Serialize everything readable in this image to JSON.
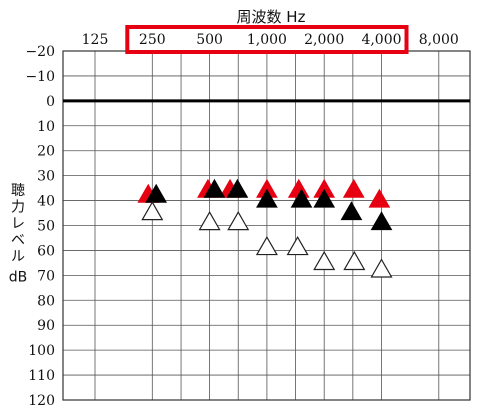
{
  "chart_data": {
    "type": "scatter",
    "title": "周波数 Hz",
    "xlabel": "周波数 Hz",
    "ylabel_chars": [
      "聴",
      "力",
      "レ",
      "ベ",
      "ル"
    ],
    "ylabel_unit": "dB",
    "x_scale": "log2",
    "x_ticks": [
      125,
      250,
      500,
      1000,
      2000,
      4000,
      8000
    ],
    "x_tick_labels": [
      "125",
      "250",
      "500",
      "1,000",
      "2,000",
      "4,000",
      "8,000"
    ],
    "x_extra_grid": [
      354,
      707,
      1414,
      2828
    ],
    "ylim": [
      -20,
      120
    ],
    "y_inverted": true,
    "y_ticks": [
      -20,
      -10,
      0,
      10,
      20,
      30,
      40,
      50,
      60,
      70,
      80,
      90,
      100,
      110,
      120
    ],
    "y_tick_labels": [
      "−20",
      "−10",
      "0",
      "10",
      "20",
      "30",
      "40",
      "50",
      "60",
      "70",
      "80",
      "90",
      "100",
      "110",
      "120"
    ],
    "grid": true,
    "reference_line": 0,
    "highlight_box": {
      "from": 250,
      "to": 4000,
      "color": "#e60012"
    },
    "series": [
      {
        "marker": "filled-triangle",
        "color": "#e60012",
        "points": [
          {
            "x": 238,
            "y": 38
          },
          {
            "x": 490,
            "y": 36
          },
          {
            "x": 640,
            "y": 36
          },
          {
            "x": 1000,
            "y": 36
          },
          {
            "x": 1470,
            "y": 36
          },
          {
            "x": 2000,
            "y": 36
          },
          {
            "x": 2860,
            "y": 36
          },
          {
            "x": 3900,
            "y": 40
          }
        ]
      },
      {
        "marker": "filled-triangle",
        "color": "#000000",
        "points": [
          {
            "x": 262,
            "y": 38
          },
          {
            "x": 530,
            "y": 36
          },
          {
            "x": 700,
            "y": 36
          },
          {
            "x": 1000,
            "y": 40
          },
          {
            "x": 1520,
            "y": 40
          },
          {
            "x": 2000,
            "y": 40
          },
          {
            "x": 2780,
            "y": 45
          },
          {
            "x": 4000,
            "y": 49
          }
        ]
      },
      {
        "marker": "hollow-triangle",
        "color": "#000000",
        "points": [
          {
            "x": 250,
            "y": 45
          },
          {
            "x": 500,
            "y": 49
          },
          {
            "x": 707,
            "y": 49
          },
          {
            "x": 1000,
            "y": 59
          },
          {
            "x": 1450,
            "y": 59
          },
          {
            "x": 2000,
            "y": 65
          },
          {
            "x": 2880,
            "y": 65
          },
          {
            "x": 4000,
            "y": 68
          }
        ]
      }
    ]
  }
}
